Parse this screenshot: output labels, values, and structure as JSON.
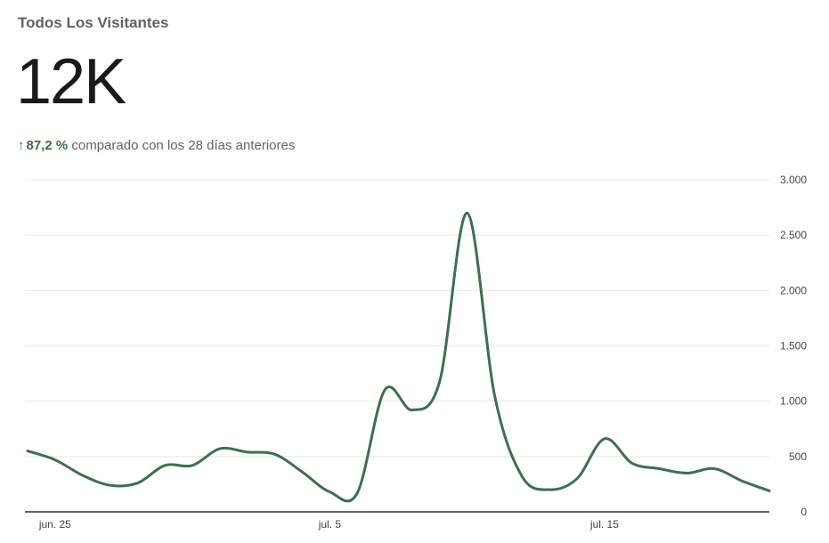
{
  "header": {
    "title": "Todos Los Visitantes",
    "total": "12K",
    "delta_arrow": "↑",
    "delta": "87,2 %",
    "comparison_text": "comparado con los 28 días anteriores"
  },
  "colors": {
    "line": "#3d6f4e",
    "delta": "#3c6e47",
    "grid": "#e8e8e8",
    "axis": "#333333"
  },
  "chart_data": {
    "type": "line",
    "title": "",
    "xlabel": "",
    "ylabel": "",
    "ylim": [
      0,
      3000
    ],
    "y_ticks": [
      0,
      500,
      1000,
      1500,
      2000,
      2500,
      3000
    ],
    "y_tick_labels": [
      "0",
      "500",
      "1.000",
      "1.500",
      "2.000",
      "2.500",
      "3.000"
    ],
    "x_ticks": [
      {
        "date": "2024-06-25",
        "label": "jun. 25"
      },
      {
        "date": "2024-07-05",
        "label": "jul. 5"
      },
      {
        "date": "2024-07-15",
        "label": "jul. 15"
      }
    ],
    "grid": true,
    "series": [
      {
        "x": [
          "2024-06-24",
          "2024-06-25",
          "2024-06-26",
          "2024-06-27",
          "2024-06-28",
          "2024-06-29",
          "2024-06-30",
          "2024-07-01",
          "2024-07-02",
          "2024-07-03",
          "2024-07-04",
          "2024-07-05",
          "2024-07-06",
          "2024-07-07",
          "2024-07-08",
          "2024-07-09",
          "2024-07-10",
          "2024-07-11",
          "2024-07-12",
          "2024-07-13",
          "2024-07-14",
          "2024-07-15",
          "2024-07-16",
          "2024-07-17",
          "2024-07-18",
          "2024-07-19",
          "2024-07-20",
          "2024-07-21"
        ],
        "values": [
          550,
          470,
          330,
          240,
          260,
          420,
          420,
          570,
          540,
          520,
          360,
          180,
          170,
          1100,
          920,
          1180,
          2700,
          1050,
          320,
          200,
          300,
          660,
          440,
          390,
          350,
          390,
          280,
          190
        ]
      }
    ]
  }
}
